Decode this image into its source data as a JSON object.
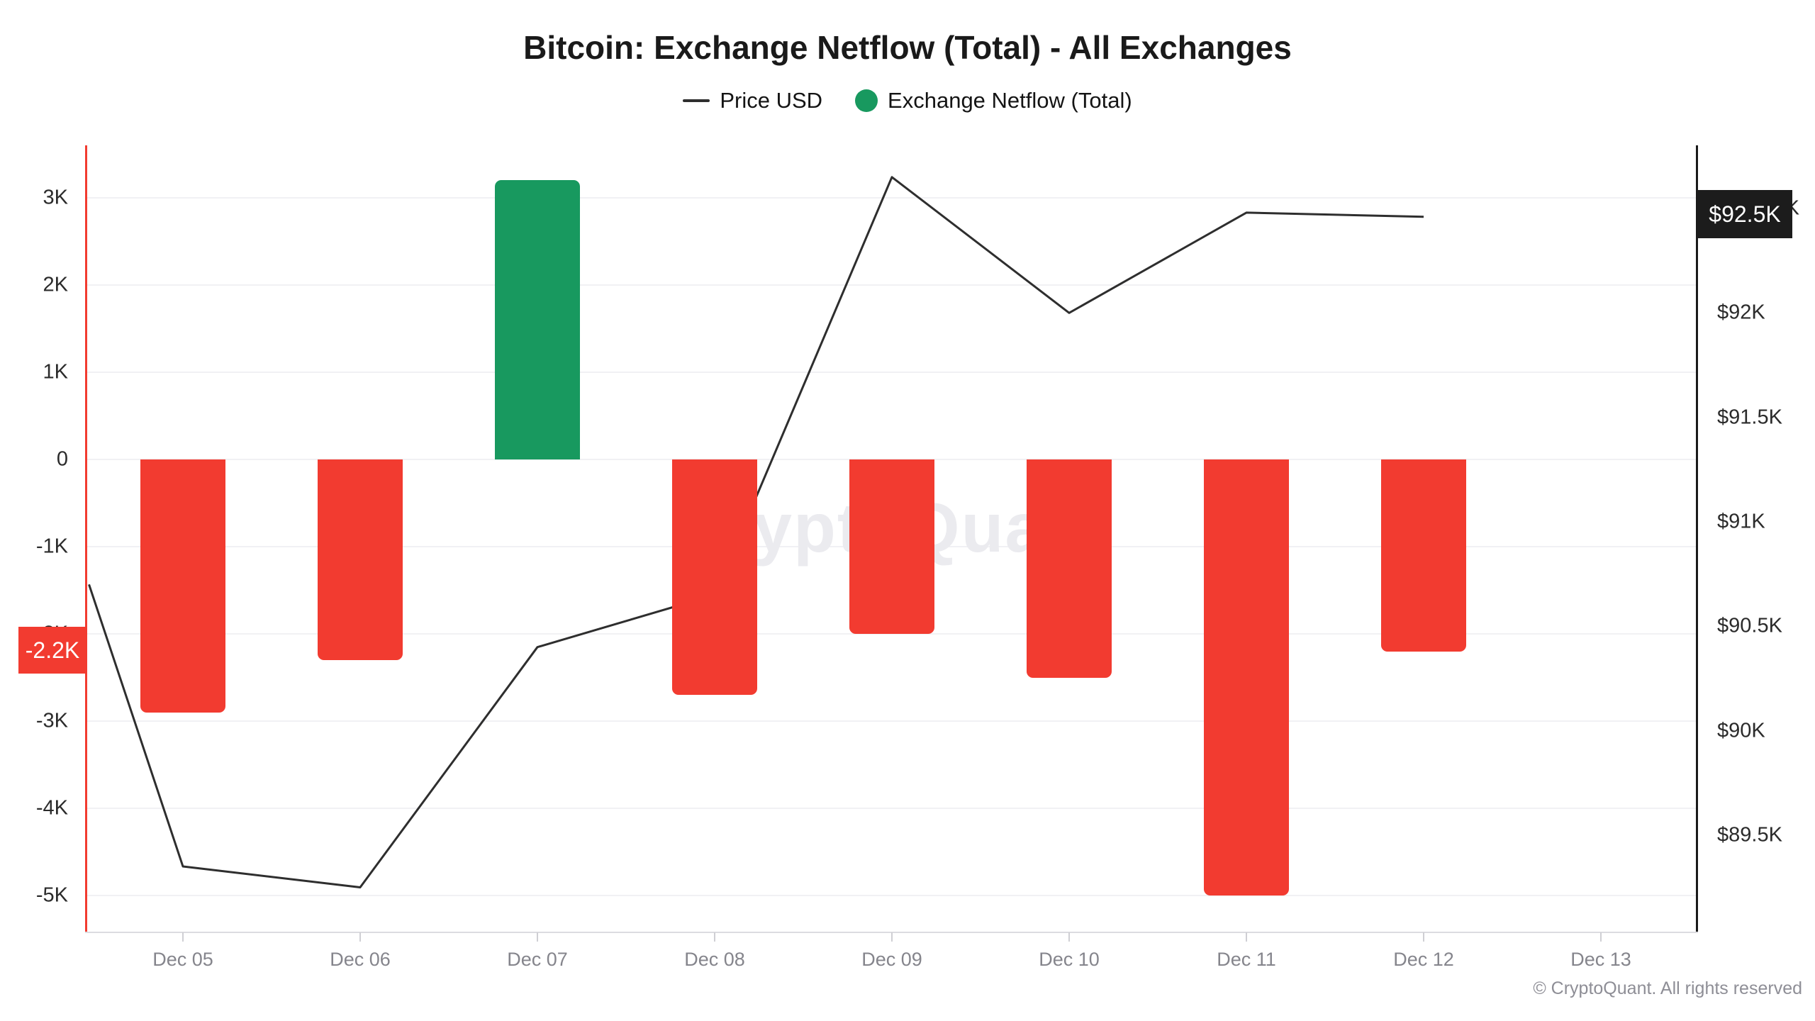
{
  "title": "Bitcoin: Exchange Netflow (Total) - All Exchanges",
  "legend": [
    {
      "label": "Price USD",
      "marker": "line",
      "color": "#2e2e2e"
    },
    {
      "label": "Exchange Netflow (Total)",
      "marker": "dot",
      "color": "#18995f"
    }
  ],
  "watermark": "CryptoQuant",
  "copyright": "© CryptoQuant. All rights reserved",
  "badges": {
    "netflow_latest": "-2.2K",
    "price_latest": "$92.5K"
  },
  "colors": {
    "netflow_positive": "#18995f",
    "netflow_negative": "#f23b30",
    "price_line": "#2e2e2e",
    "left_axis_line": "#f23b30",
    "right_axis_line": "#1a1a1a",
    "badge_netflow_bg": "#f23b30",
    "badge_price_bg": "#1c1c1c"
  },
  "chart_data": {
    "type": "bar+line",
    "categories": [
      "Dec 05",
      "Dec 06",
      "Dec 07",
      "Dec 08",
      "Dec 09",
      "Dec 10",
      "Dec 11",
      "Dec 12",
      "Dec 13"
    ],
    "series": [
      {
        "name": "Exchange Netflow (Total)",
        "type": "bar",
        "axis": "left",
        "unit": "K BTC",
        "values": [
          -2.9,
          -2.3,
          3.2,
          -2.7,
          -2.0,
          -2.5,
          -5.0,
          -2.2,
          null
        ]
      },
      {
        "name": "Price USD",
        "type": "line",
        "axis": "right",
        "unit": "K USD",
        "edge_start": {
          "day_offset": -0.53,
          "value": 90.7
        },
        "values": [
          89.35,
          89.25,
          90.4,
          90.65,
          92.65,
          92.0,
          92.48,
          92.46,
          null
        ]
      }
    ],
    "left_axis": {
      "tick_labels": [
        "3K",
        "2K",
        "1K",
        "0",
        "-1K",
        "-2K",
        "-3K",
        "-4K",
        "-5K"
      ],
      "tick_values": [
        3,
        2,
        1,
        0,
        -1,
        -2,
        -3,
        -4,
        -5
      ],
      "range": [
        -5.4,
        3.6
      ],
      "grid": true
    },
    "right_axis": {
      "tick_labels": [
        "$92.5K",
        "$92K",
        "$91.5K",
        "$91K",
        "$90.5K",
        "$90K",
        "$89.5K"
      ],
      "tick_values": [
        92.5,
        92.0,
        91.5,
        91.0,
        90.5,
        90.0,
        89.5
      ],
      "range": [
        89.1,
        92.8
      ],
      "grid": false
    },
    "legend_position": "top"
  }
}
